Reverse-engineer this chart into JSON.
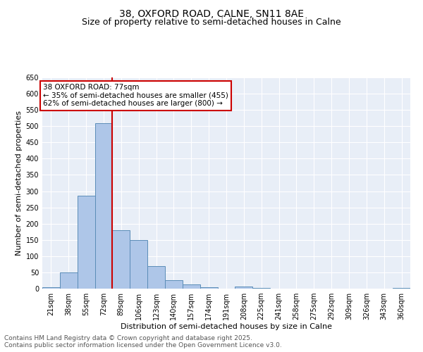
{
  "title": "38, OXFORD ROAD, CALNE, SN11 8AE",
  "subtitle": "Size of property relative to semi-detached houses in Calne",
  "xlabel": "Distribution of semi-detached houses by size in Calne",
  "ylabel": "Number of semi-detached properties",
  "categories": [
    "21sqm",
    "38sqm",
    "55sqm",
    "72sqm",
    "89sqm",
    "106sqm",
    "123sqm",
    "140sqm",
    "157sqm",
    "174sqm",
    "191sqm",
    "208sqm",
    "225sqm",
    "241sqm",
    "258sqm",
    "275sqm",
    "292sqm",
    "309sqm",
    "326sqm",
    "343sqm",
    "360sqm"
  ],
  "values": [
    5,
    50,
    285,
    510,
    180,
    150,
    70,
    25,
    12,
    5,
    0,
    7,
    2,
    1,
    0,
    0,
    0,
    0,
    0,
    0,
    2
  ],
  "bar_color": "#aec6e8",
  "bar_edge_color": "#5b8db8",
  "red_line_x": 3.5,
  "red_line_label": "38 OXFORD ROAD: 77sqm",
  "annotation_smaller": "← 35% of semi-detached houses are smaller (455)",
  "annotation_larger": "62% of semi-detached houses are larger (800) →",
  "annotation_box_color": "#ffffff",
  "annotation_box_edge_color": "#cc0000",
  "ylim": [
    0,
    650
  ],
  "yticks": [
    0,
    50,
    100,
    150,
    200,
    250,
    300,
    350,
    400,
    450,
    500,
    550,
    600,
    650
  ],
  "background_color": "#e8eef7",
  "footer_line1": "Contains HM Land Registry data © Crown copyright and database right 2025.",
  "footer_line2": "Contains public sector information licensed under the Open Government Licence v3.0.",
  "title_fontsize": 10,
  "subtitle_fontsize": 9,
  "axis_label_fontsize": 8,
  "tick_fontsize": 7,
  "annotation_fontsize": 7.5,
  "footer_fontsize": 6.5
}
